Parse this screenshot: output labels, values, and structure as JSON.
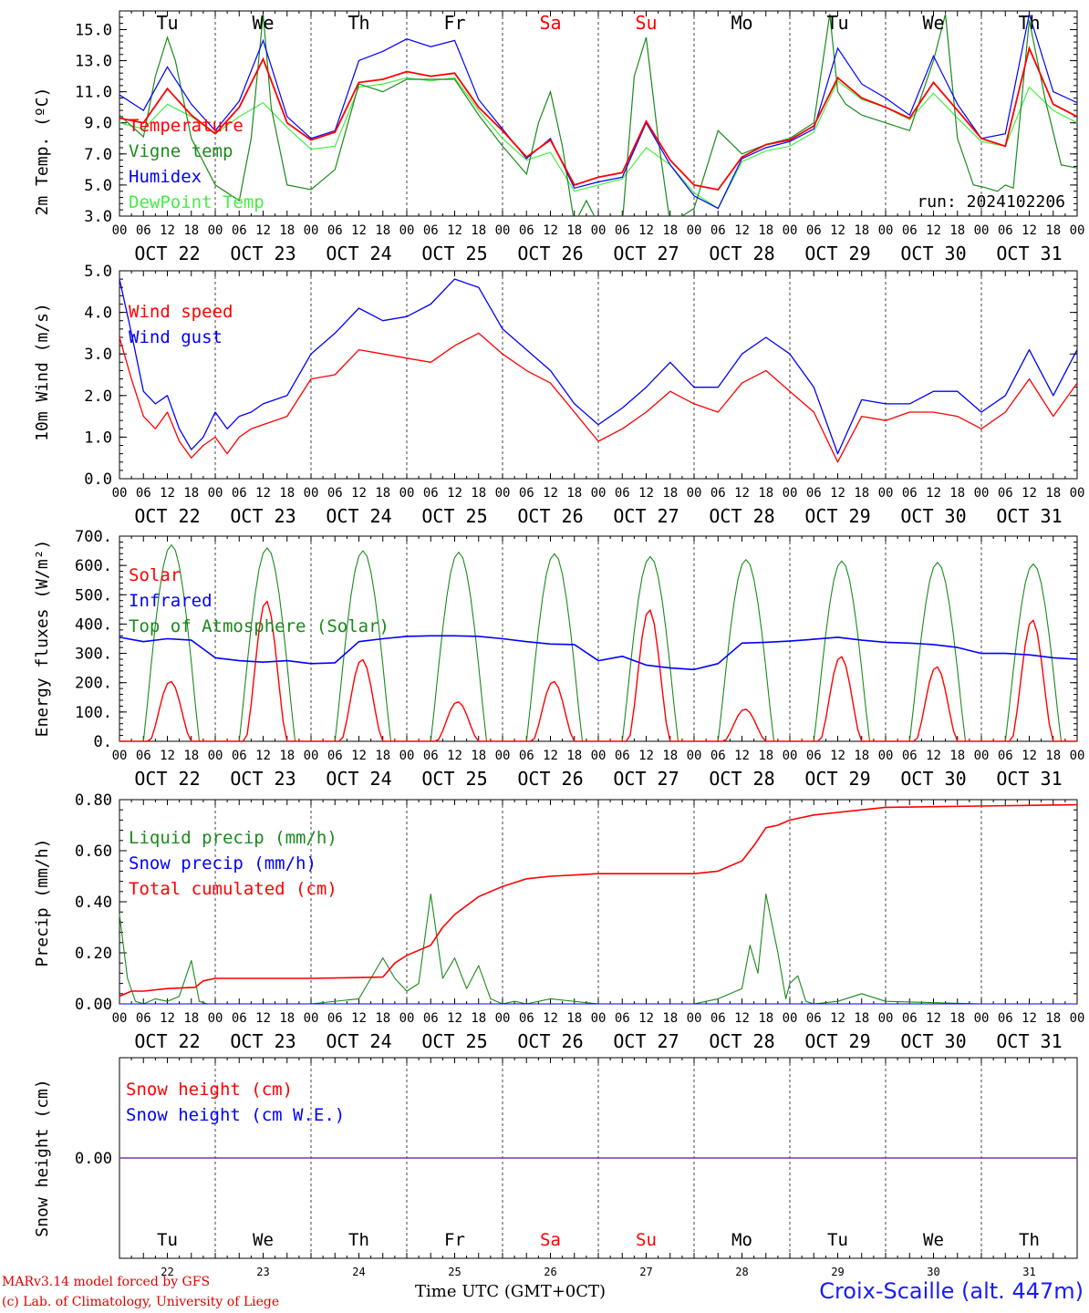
{
  "colors": {
    "red": "#ff0000",
    "green": "#1a8a1a",
    "blue": "#0000ff",
    "lightgreen": "#44ee44",
    "purple": "#7a3a9a"
  },
  "days": {
    "weekday": [
      "Tu",
      "We",
      "Th",
      "Fr",
      "Sa",
      "Su",
      "Mo",
      "Tu",
      "We",
      "Th"
    ],
    "weekday_red": [
      false,
      false,
      false,
      false,
      true,
      true,
      false,
      false,
      false,
      false
    ],
    "dates": [
      "OCT 22",
      "OCT 23",
      "OCT 24",
      "OCT 25",
      "OCT 26",
      "OCT 27",
      "OCT 28",
      "OCT 29",
      "OCT 30",
      "OCT 31"
    ],
    "day_numbers": [
      "22",
      "23",
      "24",
      "25",
      "26",
      "27",
      "28",
      "29",
      "30",
      "31"
    ],
    "hours": [
      "00",
      "06",
      "12",
      "18"
    ],
    "last_hour": "00"
  },
  "chart_data": [
    {
      "type": "line",
      "ylabel": "2m Temp. (ºC)",
      "ylim": [
        3.0,
        16.2
      ],
      "yticks": [
        "3.0",
        "5.0",
        "7.0",
        "9.0",
        "11.0",
        "13.0",
        "15.0"
      ],
      "xunit": "hours since OCT 22 00 UTC",
      "run_label": "run: 2024102206",
      "series": [
        {
          "name": "Temperature",
          "color": "red",
          "x": [
            0,
            6,
            12,
            18,
            24,
            30,
            36,
            42,
            48,
            54,
            60,
            66,
            72,
            78,
            84,
            90,
            96,
            102,
            108,
            114,
            120,
            126,
            132,
            138,
            144,
            150,
            156,
            162,
            168,
            174,
            180,
            186,
            192,
            198,
            204,
            210,
            216,
            222,
            228,
            234,
            240
          ],
          "y": [
            9.3,
            9.0,
            11.2,
            9.5,
            8.3,
            10.0,
            13.1,
            9.0,
            7.9,
            8.4,
            11.6,
            11.8,
            12.3,
            12.0,
            12.2,
            10.0,
            8.5,
            6.8,
            7.9,
            5.0,
            5.5,
            5.8,
            9.1,
            6.6,
            5.0,
            4.7,
            6.8,
            7.6,
            7.9,
            8.8,
            11.9,
            10.6,
            10.0,
            9.3,
            11.6,
            9.8,
            8.0,
            7.5,
            13.8,
            10.2,
            9.4
          ]
        },
        {
          "name": "Vigne temp",
          "color": "green",
          "x": [
            0,
            6,
            9,
            12,
            14,
            18,
            24,
            30,
            33,
            36,
            38,
            42,
            48,
            54,
            60,
            66,
            72,
            78,
            84,
            90,
            96,
            102,
            105,
            108,
            111,
            114,
            117,
            120,
            126,
            129,
            132,
            135,
            138,
            144,
            150,
            156,
            162,
            168,
            174,
            178,
            180,
            182,
            186,
            192,
            198,
            204,
            207,
            210,
            214,
            216,
            220,
            222,
            224,
            228,
            232,
            236,
            240
          ],
          "y": [
            9.5,
            8.1,
            12.0,
            14.5,
            13.0,
            8.0,
            5.0,
            4.0,
            8.0,
            16.0,
            10.0,
            5.0,
            4.7,
            6.0,
            11.5,
            11.0,
            11.8,
            11.8,
            11.8,
            9.5,
            7.5,
            5.7,
            9.0,
            11.0,
            7.5,
            2.5,
            4.0,
            2.5,
            2.5,
            12.0,
            14.5,
            8.0,
            2.5,
            3.5,
            8.5,
            7.0,
            7.6,
            8.0,
            9.0,
            16.0,
            11.0,
            10.2,
            9.5,
            9.0,
            8.5,
            13.0,
            16.0,
            8.0,
            5.0,
            4.9,
            4.6,
            5.0,
            4.8,
            15.6,
            10.5,
            6.3,
            6.1
          ]
        },
        {
          "name": "Humidex",
          "color": "blue",
          "x": [
            0,
            6,
            12,
            18,
            24,
            30,
            36,
            42,
            48,
            54,
            60,
            66,
            72,
            78,
            84,
            90,
            96,
            102,
            108,
            114,
            120,
            126,
            132,
            138,
            144,
            150,
            156,
            162,
            168,
            174,
            180,
            186,
            192,
            198,
            204,
            210,
            216,
            222,
            228,
            234,
            240
          ],
          "y": [
            10.8,
            9.8,
            12.6,
            10.2,
            8.5,
            10.4,
            14.3,
            9.4,
            8.0,
            8.5,
            13.0,
            13.6,
            14.4,
            13.9,
            14.3,
            10.5,
            8.6,
            6.7,
            8.0,
            4.8,
            5.2,
            5.5,
            9.0,
            6.3,
            4.3,
            3.5,
            6.7,
            7.4,
            7.8,
            8.6,
            13.8,
            11.5,
            10.6,
            9.5,
            13.3,
            10.2,
            8.0,
            8.3,
            16.0,
            11.0,
            10.3
          ]
        },
        {
          "name": "DewPoint Temp",
          "color": "lightgreen",
          "x": [
            0,
            6,
            12,
            18,
            24,
            30,
            36,
            42,
            48,
            54,
            60,
            66,
            72,
            78,
            84,
            90,
            96,
            102,
            108,
            114,
            120,
            126,
            132,
            138,
            144,
            150,
            156,
            162,
            168,
            174,
            180,
            186,
            192,
            198,
            204,
            210,
            216,
            222,
            228,
            234,
            240
          ],
          "y": [
            9.0,
            8.6,
            10.2,
            9.4,
            8.3,
            9.4,
            10.3,
            8.7,
            7.3,
            7.5,
            11.3,
            11.5,
            11.9,
            11.7,
            11.9,
            9.8,
            8.0,
            6.6,
            7.1,
            4.6,
            5.0,
            5.4,
            7.4,
            6.3,
            4.5,
            3.5,
            6.5,
            7.2,
            7.5,
            8.4,
            11.7,
            10.5,
            10.0,
            9.2,
            10.9,
            9.3,
            7.8,
            7.5,
            11.3,
            9.8,
            9.0
          ]
        }
      ]
    },
    {
      "type": "line",
      "ylabel": "10m Wind (m/s)",
      "ylim": [
        0,
        5.0
      ],
      "yticks": [
        "0.0",
        "1.0",
        "2.0",
        "3.0",
        "4.0",
        "5.0"
      ],
      "series": [
        {
          "name": "Wind speed",
          "color": "red",
          "x": [
            0,
            3,
            6,
            9,
            12,
            15,
            18,
            21,
            24,
            27,
            30,
            33,
            36,
            42,
            48,
            54,
            60,
            66,
            72,
            78,
            84,
            90,
            96,
            102,
            108,
            114,
            120,
            126,
            132,
            138,
            144,
            150,
            156,
            162,
            168,
            174,
            180,
            186,
            192,
            198,
            204,
            210,
            216,
            222,
            228,
            234,
            240
          ],
          "y": [
            3.4,
            2.4,
            1.5,
            1.2,
            1.6,
            0.9,
            0.5,
            0.8,
            1.0,
            0.6,
            1.0,
            1.2,
            1.3,
            1.5,
            2.4,
            2.5,
            3.1,
            3.0,
            2.9,
            2.8,
            3.2,
            3.5,
            3.0,
            2.6,
            2.3,
            1.6,
            0.9,
            1.2,
            1.6,
            2.1,
            1.8,
            1.6,
            2.3,
            2.6,
            2.1,
            1.6,
            0.4,
            1.5,
            1.4,
            1.6,
            1.6,
            1.5,
            1.2,
            1.6,
            2.4,
            1.5,
            2.3
          ]
        },
        {
          "name": "Wind gust",
          "color": "blue",
          "x": [
            0,
            3,
            6,
            9,
            12,
            15,
            18,
            21,
            24,
            27,
            30,
            33,
            36,
            42,
            48,
            54,
            60,
            66,
            72,
            78,
            84,
            90,
            96,
            102,
            108,
            114,
            120,
            126,
            132,
            138,
            144,
            150,
            156,
            162,
            168,
            174,
            180,
            186,
            192,
            198,
            204,
            210,
            216,
            222,
            228,
            234,
            240
          ],
          "y": [
            4.8,
            3.5,
            2.1,
            1.8,
            2.0,
            1.2,
            0.7,
            1.0,
            1.6,
            1.2,
            1.5,
            1.6,
            1.8,
            2.0,
            3.0,
            3.5,
            4.1,
            3.8,
            3.9,
            4.2,
            4.8,
            4.6,
            3.6,
            3.1,
            2.6,
            1.8,
            1.3,
            1.7,
            2.2,
            2.8,
            2.2,
            2.2,
            3.0,
            3.4,
            3.0,
            2.2,
            0.6,
            1.9,
            1.8,
            1.8,
            2.1,
            2.1,
            1.6,
            2.0,
            3.1,
            2.0,
            3.1
          ]
        }
      ]
    },
    {
      "type": "line",
      "ylabel": "Energy fluxes (W/m²)",
      "ylim": [
        0,
        700
      ],
      "yticks": [
        "0.",
        "100.",
        "200.",
        "300.",
        "400.",
        "500.",
        "600.",
        "700."
      ],
      "series": [
        {
          "name": "Solar",
          "color": "red",
          "peak_hour": 13,
          "daily_peak": [
            205,
            480,
            280,
            135,
            205,
            450,
            110,
            290,
            255,
            415
          ]
        },
        {
          "name": "Infrared",
          "color": "blue",
          "x": [
            0,
            6,
            12,
            18,
            24,
            30,
            36,
            42,
            48,
            54,
            60,
            66,
            72,
            78,
            84,
            90,
            96,
            102,
            108,
            114,
            120,
            126,
            132,
            138,
            144,
            150,
            156,
            162,
            168,
            174,
            180,
            186,
            192,
            198,
            204,
            210,
            216,
            222,
            228,
            234,
            240
          ],
          "y": [
            355,
            340,
            350,
            345,
            285,
            275,
            270,
            275,
            265,
            268,
            340,
            350,
            358,
            360,
            360,
            358,
            350,
            340,
            332,
            330,
            275,
            290,
            260,
            250,
            245,
            265,
            335,
            338,
            342,
            348,
            355,
            345,
            338,
            335,
            330,
            320,
            300,
            300,
            295,
            285,
            280
          ]
        },
        {
          "name": "Top of Atmosphere (Solar)",
          "color": "green",
          "peak_hour": 13,
          "daily_peak": [
            670,
            660,
            650,
            645,
            640,
            630,
            620,
            615,
            610,
            605
          ]
        }
      ]
    },
    {
      "type": "line",
      "ylabel": "Precip (mm/h)",
      "ylim": [
        0,
        0.8
      ],
      "yticks": [
        "0.00",
        "0.20",
        "0.40",
        "0.60",
        "0.80"
      ],
      "series": [
        {
          "name": "Liquid precip (mm/h)",
          "color": "green",
          "x": [
            0,
            2,
            4,
            6,
            9,
            12,
            15,
            18,
            20,
            22,
            24,
            48,
            60,
            66,
            69,
            72,
            75,
            78,
            81,
            84,
            87,
            90,
            93,
            96,
            99,
            102,
            108,
            120,
            144,
            150,
            156,
            158,
            160,
            162,
            165,
            167,
            168,
            170,
            172,
            174,
            180,
            186,
            192,
            216,
            240
          ],
          "y": [
            0.35,
            0.1,
            0.01,
            0.0,
            0.02,
            0.01,
            0.03,
            0.17,
            0.01,
            0.0,
            0.0,
            0.0,
            0.02,
            0.18,
            0.1,
            0.05,
            0.08,
            0.43,
            0.1,
            0.18,
            0.06,
            0.15,
            0.02,
            0.0,
            0.01,
            0.0,
            0.02,
            0.0,
            0.0,
            0.02,
            0.06,
            0.23,
            0.12,
            0.43,
            0.2,
            0.02,
            0.08,
            0.11,
            0.01,
            0.0,
            0.01,
            0.04,
            0.01,
            0.0,
            0.0
          ]
        },
        {
          "name": "Snow precip (mm/h)",
          "color": "blue",
          "x": [
            0,
            240
          ],
          "y": [
            0,
            0
          ]
        },
        {
          "name": "Total cumulated (cm)",
          "color": "red",
          "x": [
            0,
            3,
            6,
            12,
            19,
            21,
            24,
            48,
            66,
            69,
            72,
            78,
            81,
            84,
            90,
            96,
            102,
            108,
            120,
            144,
            150,
            156,
            159,
            162,
            165,
            168,
            174,
            180,
            186,
            192,
            216,
            240
          ],
          "y": [
            0.03,
            0.05,
            0.05,
            0.06,
            0.065,
            0.09,
            0.1,
            0.1,
            0.105,
            0.16,
            0.19,
            0.23,
            0.3,
            0.35,
            0.42,
            0.46,
            0.49,
            0.5,
            0.51,
            0.51,
            0.52,
            0.56,
            0.62,
            0.69,
            0.7,
            0.72,
            0.74,
            0.75,
            0.76,
            0.77,
            0.775,
            0.78
          ]
        }
      ]
    },
    {
      "type": "line",
      "ylabel": "Snow height (cm)",
      "yticks": [
        "0.00"
      ],
      "series": [
        {
          "name": "Snow height (cm)",
          "color": "red",
          "x": [
            0,
            240
          ],
          "y": [
            0,
            0
          ]
        },
        {
          "name": "Snow height (cm W.E.)",
          "color": "blue",
          "x": [
            0,
            240
          ],
          "y": [
            0,
            0
          ]
        }
      ]
    }
  ],
  "footer": {
    "xlabel": "Time UTC (GMT+0CT)",
    "model": "MARv3.14 model forced by GFS",
    "credit": "(c) Lab. of Climatology, University of Liege",
    "station": "Croix-Scaille (alt. 447m)"
  }
}
